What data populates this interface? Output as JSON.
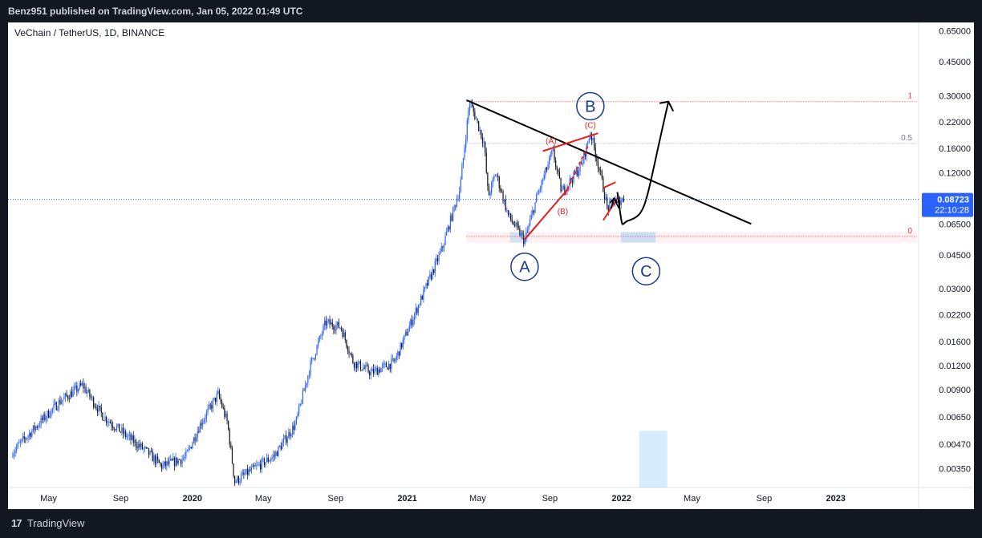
{
  "header": {
    "published": "Benz951 published on TradingView.com, Jan 05, 2022 01:49 UTC"
  },
  "footer": {
    "brand_mark": "17",
    "brand": "TradingView"
  },
  "chart_data": {
    "type": "candlestick",
    "title": "VeChain / TetherUS, 1D, BINANCE",
    "y_scale": "log",
    "ylim": [
      0.0028,
      0.72
    ],
    "y_ticks": [
      "0.65000",
      "0.45000",
      "0.30000",
      "0.22000",
      "0.16000",
      "0.12000",
      "0.06500",
      "0.04500",
      "0.03000",
      "0.02200",
      "0.01600",
      "0.01200",
      "0.00900",
      "0.00650",
      "0.00470",
      "0.00350"
    ],
    "x_ticks": [
      "May",
      "Sep",
      "2020",
      "May",
      "Sep",
      "2021",
      "May",
      "Sep",
      "2022",
      "May",
      "Sep",
      "2023"
    ],
    "price_path": [
      [
        "2019-03-01",
        0.0043
      ],
      [
        "2019-04-10",
        0.0058
      ],
      [
        "2019-05-20",
        0.0078
      ],
      [
        "2019-06-28",
        0.0095
      ],
      [
        "2019-08-01",
        0.0066
      ],
      [
        "2019-09-10",
        0.0052
      ],
      [
        "2019-10-15",
        0.0043
      ],
      [
        "2019-11-10",
        0.0036
      ],
      [
        "2019-12-20",
        0.004
      ],
      [
        "2020-01-15",
        0.006
      ],
      [
        "2020-02-14",
        0.0085
      ],
      [
        "2020-03-01",
        0.006
      ],
      [
        "2020-03-13",
        0.003
      ],
      [
        "2020-04-15",
        0.0035
      ],
      [
        "2020-05-20",
        0.0041
      ],
      [
        "2020-06-25",
        0.006
      ],
      [
        "2020-07-20",
        0.012
      ],
      [
        "2020-08-15",
        0.02
      ],
      [
        "2020-09-10",
        0.019
      ],
      [
        "2020-10-01",
        0.0125
      ],
      [
        "2020-11-01",
        0.011
      ],
      [
        "2020-12-10",
        0.0125
      ],
      [
        "2021-01-01",
        0.018
      ],
      [
        "2021-02-01",
        0.03
      ],
      [
        "2021-03-01",
        0.048
      ],
      [
        "2021-04-01",
        0.1
      ],
      [
        "2021-04-17",
        0.28
      ],
      [
        "2021-04-28",
        0.23
      ],
      [
        "2021-05-12",
        0.17
      ],
      [
        "2021-05-19",
        0.09
      ],
      [
        "2021-06-01",
        0.12
      ],
      [
        "2021-06-22",
        0.072
      ],
      [
        "2021-07-20",
        0.053
      ],
      [
        "2021-08-10",
        0.09
      ],
      [
        "2021-09-06",
        0.155
      ],
      [
        "2021-09-21",
        0.095
      ],
      [
        "2021-10-25",
        0.13
      ],
      [
        "2021-11-09",
        0.195
      ],
      [
        "2021-11-26",
        0.118
      ],
      [
        "2021-12-08",
        0.078
      ],
      [
        "2021-12-20",
        0.085
      ],
      [
        "2022-01-05",
        0.0872
      ]
    ],
    "last_price": "0.08723",
    "countdown": "22:10:28",
    "fib_levels": [
      {
        "label": "1",
        "price": 0.28
      },
      {
        "label": "0.5",
        "price": 0.17
      },
      {
        "label": "0",
        "price": 0.056
      }
    ],
    "wave_labels": [
      {
        "label": "A",
        "date": "2021-07-20",
        "price": 0.039
      },
      {
        "label": "B",
        "date": "2021-11-09",
        "price": 0.265
      },
      {
        "label": "C",
        "date": "2022-02-12",
        "price": 0.037
      }
    ],
    "subwave_labels": [
      {
        "label": "(A)",
        "date": "2021-09-03",
        "price": 0.17
      },
      {
        "label": "(B)",
        "date": "2021-09-23",
        "price": 0.073
      },
      {
        "label": "(C)",
        "date": "2021-11-09",
        "price": 0.205
      }
    ],
    "trendline": {
      "from": [
        "2021-04-12",
        0.285
      ],
      "to": [
        "2022-08-10",
        0.065
      ]
    },
    "projection_path": [
      [
        "2021-12-25",
        0.095
      ],
      [
        "2022-01-15",
        0.068
      ],
      [
        "2022-02-20",
        0.09
      ],
      [
        "2022-03-22",
        0.28
      ]
    ],
    "target_zone": {
      "from_date": "2022-01-31",
      "to_date": "2022-03-20",
      "price_top": 0.0055,
      "price_bottom": 0.0028
    },
    "support_zone": {
      "from_date": "2021-12-31",
      "to_date": "2022-02-28",
      "price_top": 0.059,
      "price_bottom": 0.052
    }
  }
}
